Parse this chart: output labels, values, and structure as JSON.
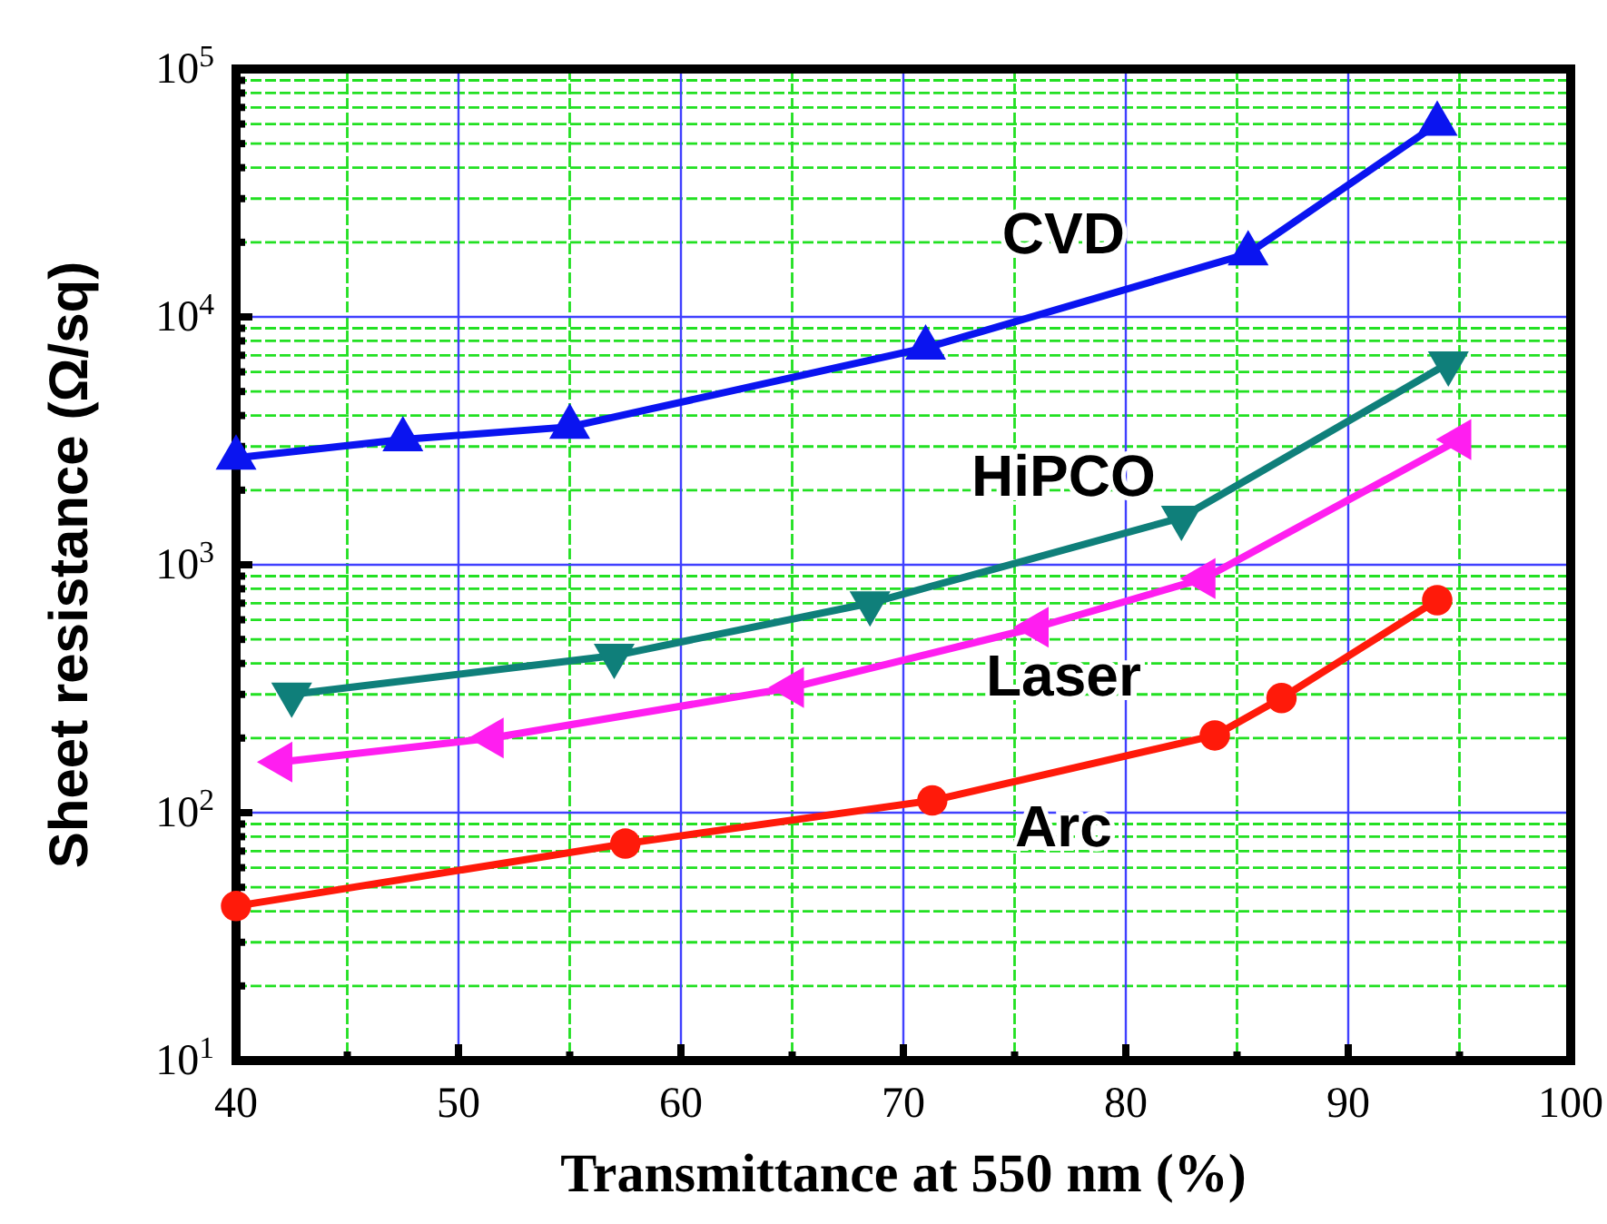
{
  "chart_data": {
    "type": "line",
    "xlabel": "Transmittance at 550 nm (%)",
    "ylabel": "Sheet resistance (Ω/sq)",
    "log": "y",
    "grid": true,
    "xlim": [
      40,
      100
    ],
    "xticks": [
      40,
      {
        "value": 45,
        "label": null
      },
      50,
      {
        "value": 55,
        "label": null
      },
      60,
      {
        "value": 65,
        "label": null
      },
      70,
      {
        "value": 75,
        "label": null
      },
      80,
      {
        "value": 85,
        "label": null
      },
      90,
      {
        "value": 95,
        "label": null
      },
      100
    ],
    "ylim": [
      10,
      100000
    ],
    "yticks": [
      {
        "value": 10,
        "label": "10$^{1}$"
      },
      {
        "value": 20,
        "label": null
      },
      {
        "value": 30,
        "label": null
      },
      {
        "value": 40,
        "label": null
      },
      {
        "value": 50,
        "label": null
      },
      {
        "value": 60,
        "label": null
      },
      {
        "value": 70,
        "label": null
      },
      {
        "value": 80,
        "label": null
      },
      {
        "value": 90,
        "label": null
      },
      {
        "value": 100,
        "label": "10$^{2}$"
      },
      {
        "value": 200,
        "label": null
      },
      {
        "value": 300,
        "label": null
      },
      {
        "value": 400,
        "label": null
      },
      {
        "value": 500,
        "label": null
      },
      {
        "value": 600,
        "label": null
      },
      {
        "value": 700,
        "label": null
      },
      {
        "value": 800,
        "label": null
      },
      {
        "value": 900,
        "label": null
      },
      {
        "value": 1000,
        "label": "10$^{3}$"
      },
      {
        "value": 2000,
        "label": null
      },
      {
        "value": 3000,
        "label": null
      },
      {
        "value": 4000,
        "label": null
      },
      {
        "value": 5000,
        "label": null
      },
      {
        "value": 6000,
        "label": null
      },
      {
        "value": 7000,
        "label": null
      },
      {
        "value": 8000,
        "label": null
      },
      {
        "value": 9000,
        "label": null
      },
      {
        "value": 10000,
        "label": "10$^{4}$"
      },
      {
        "value": 20000,
        "label": null
      },
      {
        "value": 30000,
        "label": null
      },
      {
        "value": 40000,
        "label": null
      },
      {
        "value": 50000,
        "label": null
      },
      {
        "value": 60000,
        "label": null
      },
      {
        "value": 70000,
        "label": null
      },
      {
        "value": 80000,
        "label": null
      },
      {
        "value": 90000,
        "label": null
      },
      {
        "value": 100000,
        "label": "10$^{5}$"
      }
    ],
    "series": [
      {
        "name": "CVD",
        "color": "#0a14f0",
        "marker": "triangle",
        "x": [
          40,
          47.5,
          55,
          71,
          85.5,
          94
        ],
        "values": [
          2700,
          3200,
          3600,
          7500,
          18000,
          60000
        ]
      },
      {
        "name": "HiPCO",
        "color": "#0f7f7a",
        "marker": "triangle",
        "x": [
          42.5,
          57,
          68.5,
          82.5,
          94.5
        ],
        "values": [
          300,
          430,
          700,
          1550,
          6500
        ]
      },
      {
        "name": "Laser",
        "color": "#ff1ef0",
        "marker": "triangle",
        "x": [
          42,
          51.5,
          65,
          76,
          83.5,
          95
        ],
        "values": [
          160,
          200,
          320,
          560,
          880,
          3200
        ]
      },
      {
        "name": "Arc",
        "color": "#ff1a0a",
        "marker": "circle",
        "x": [
          40,
          57.5,
          71.3,
          84,
          87,
          94
        ],
        "values": [
          42,
          75,
          112,
          205,
          290,
          720
        ]
      }
    ]
  }
}
